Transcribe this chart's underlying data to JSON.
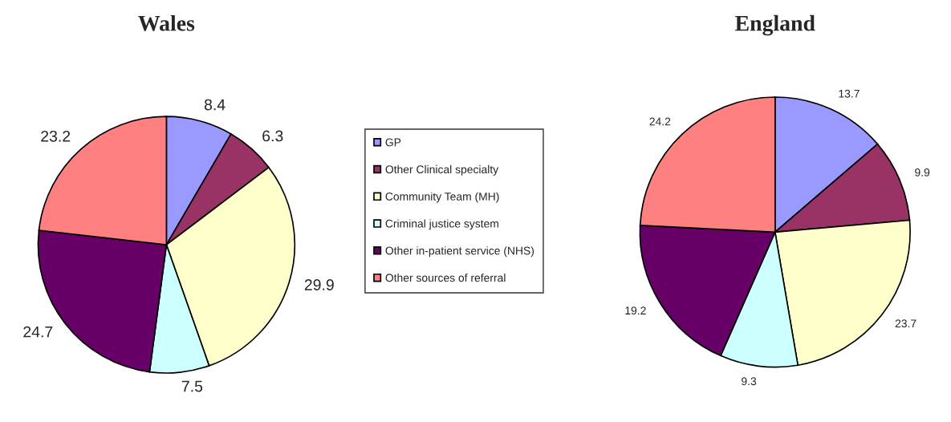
{
  "chart_data": [
    {
      "type": "pie",
      "title": "Wales",
      "categories": [
        "GP",
        "Other Clinical specialty",
        "Community Team (MH)",
        "Criminal justice system",
        "Other in-patient service (NHS)",
        "Other sources of referral"
      ],
      "values": [
        8.4,
        6.3,
        29.9,
        7.5,
        24.7,
        23.2
      ],
      "colors": [
        "#9999ff",
        "#993366",
        "#ffffcc",
        "#ccffff",
        "#660066",
        "#ff8080"
      ],
      "data_labels": true,
      "legend": "right"
    },
    {
      "type": "pie",
      "title": "England",
      "categories": [
        null,
        null,
        null,
        null,
        null,
        null
      ],
      "values": [
        13.7,
        9.9,
        23.7,
        9.3,
        19.2,
        24.2
      ],
      "colors": [
        "#9999ff",
        "#993366",
        "#ffffcc",
        "#ccffff",
        "#660066",
        "#ff8080"
      ],
      "data_labels": true
    }
  ]
}
